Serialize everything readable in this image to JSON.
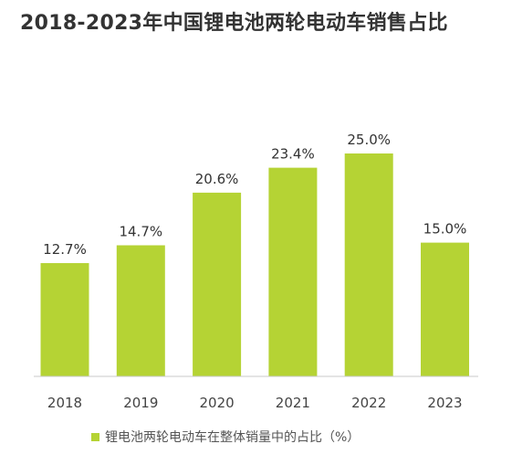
{
  "chart_data": {
    "type": "bar",
    "title": "2018-2023年中国锂电池两轮电动车销售占比",
    "categories": [
      "2018",
      "2019",
      "2020",
      "2021",
      "2022",
      "2023"
    ],
    "series": [
      {
        "name": "锂电池两轮电动车在整体销量中的占比（%）",
        "values": [
          12.7,
          14.7,
          20.6,
          23.4,
          25.0,
          15.0
        ],
        "labels": [
          "12.7%",
          "14.7%",
          "20.6%",
          "23.4%",
          "25.0%",
          "15.0%"
        ]
      }
    ],
    "ylim": [
      0,
      30
    ],
    "grid": false,
    "legend_position": "bottom",
    "colors": {
      "bar": "#b5d334",
      "axis": "#c8c8c8",
      "label": "#333333",
      "tick": "#444444"
    }
  }
}
